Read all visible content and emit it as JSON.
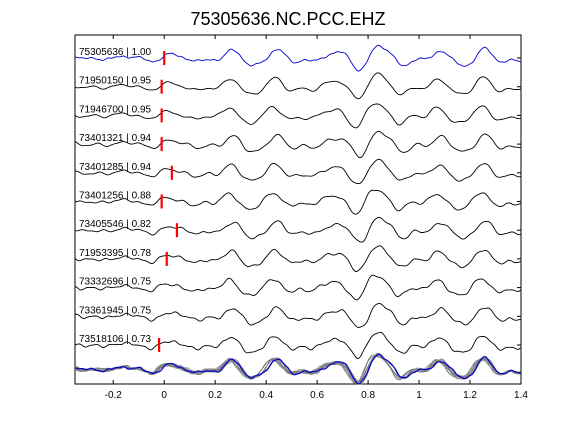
{
  "chart_data": {
    "type": "line",
    "title": "75305636.NC.PCC.EHZ",
    "xlabel": "",
    "ylabel": "",
    "xlim": [
      -0.35,
      1.4
    ],
    "xticks": [
      -0.2,
      0,
      0.2,
      0.4,
      0.6,
      0.8,
      1,
      1.2,
      1.4
    ],
    "xtick_labels": [
      "-0.2",
      "0",
      "0.2",
      "0.4",
      "0.6",
      "0.8",
      "1",
      "1.2",
      "1.4"
    ],
    "grid": false,
    "legend": "none",
    "series": [
      {
        "label": "75305636 | 1.00",
        "pick": 0.0,
        "color": "#0000cc"
      },
      {
        "label": "71950150 | 0.95",
        "pick": -0.01,
        "color": "#000000"
      },
      {
        "label": "71946700 | 0.95",
        "pick": -0.01,
        "color": "#000000"
      },
      {
        "label": "73401321 | 0.94",
        "pick": -0.01,
        "color": "#000000"
      },
      {
        "label": "73401285 | 0.94",
        "pick": 0.03,
        "color": "#000000"
      },
      {
        "label": "73401256 | 0.88",
        "pick": -0.01,
        "color": "#000000"
      },
      {
        "label": "73405546 | 0.82",
        "pick": 0.05,
        "color": "#000000"
      },
      {
        "label": "71953395 | 0.78",
        "pick": 0.01,
        "color": "#000000"
      },
      {
        "label": "73332696 | 0.75",
        "pick": null,
        "color": "#000000"
      },
      {
        "label": "73361945 | 0.75",
        "pick": null,
        "color": "#000000"
      },
      {
        "label": "73518106 | 0.73",
        "pick": -0.02,
        "color": "#000000"
      }
    ],
    "stack_colors": {
      "reference": "#0000cc",
      "others": "#808080"
    },
    "pick_color": "#ff0000"
  }
}
